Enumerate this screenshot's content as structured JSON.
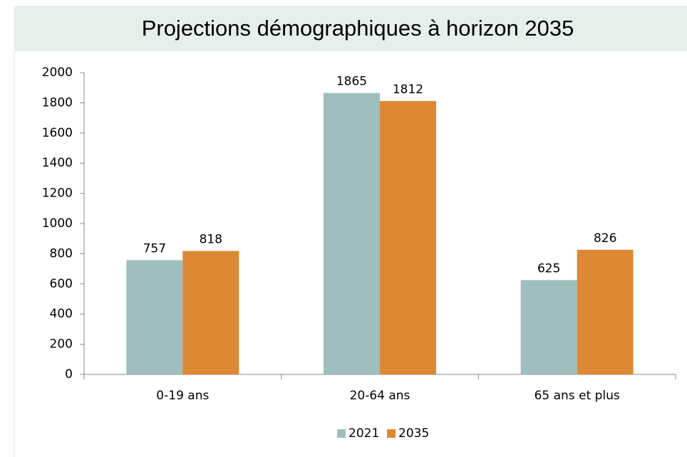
{
  "chart_data": {
    "type": "bar",
    "title": "Projections démographiques à horizon 2035",
    "categories": [
      "0-19 ans",
      "20-64 ans",
      "65 ans et plus"
    ],
    "series": [
      {
        "name": "2021",
        "color": "#9ebfbd",
        "values": [
          757,
          1865,
          625
        ]
      },
      {
        "name": "2035",
        "color": "#dd8833",
        "values": [
          818,
          1812,
          826
        ]
      }
    ],
    "ylim": [
      0,
      2000
    ],
    "yticks": [
      0,
      200,
      400,
      600,
      800,
      1000,
      1200,
      1400,
      1600,
      1800,
      2000
    ],
    "grid": false,
    "legend": "bottom"
  }
}
